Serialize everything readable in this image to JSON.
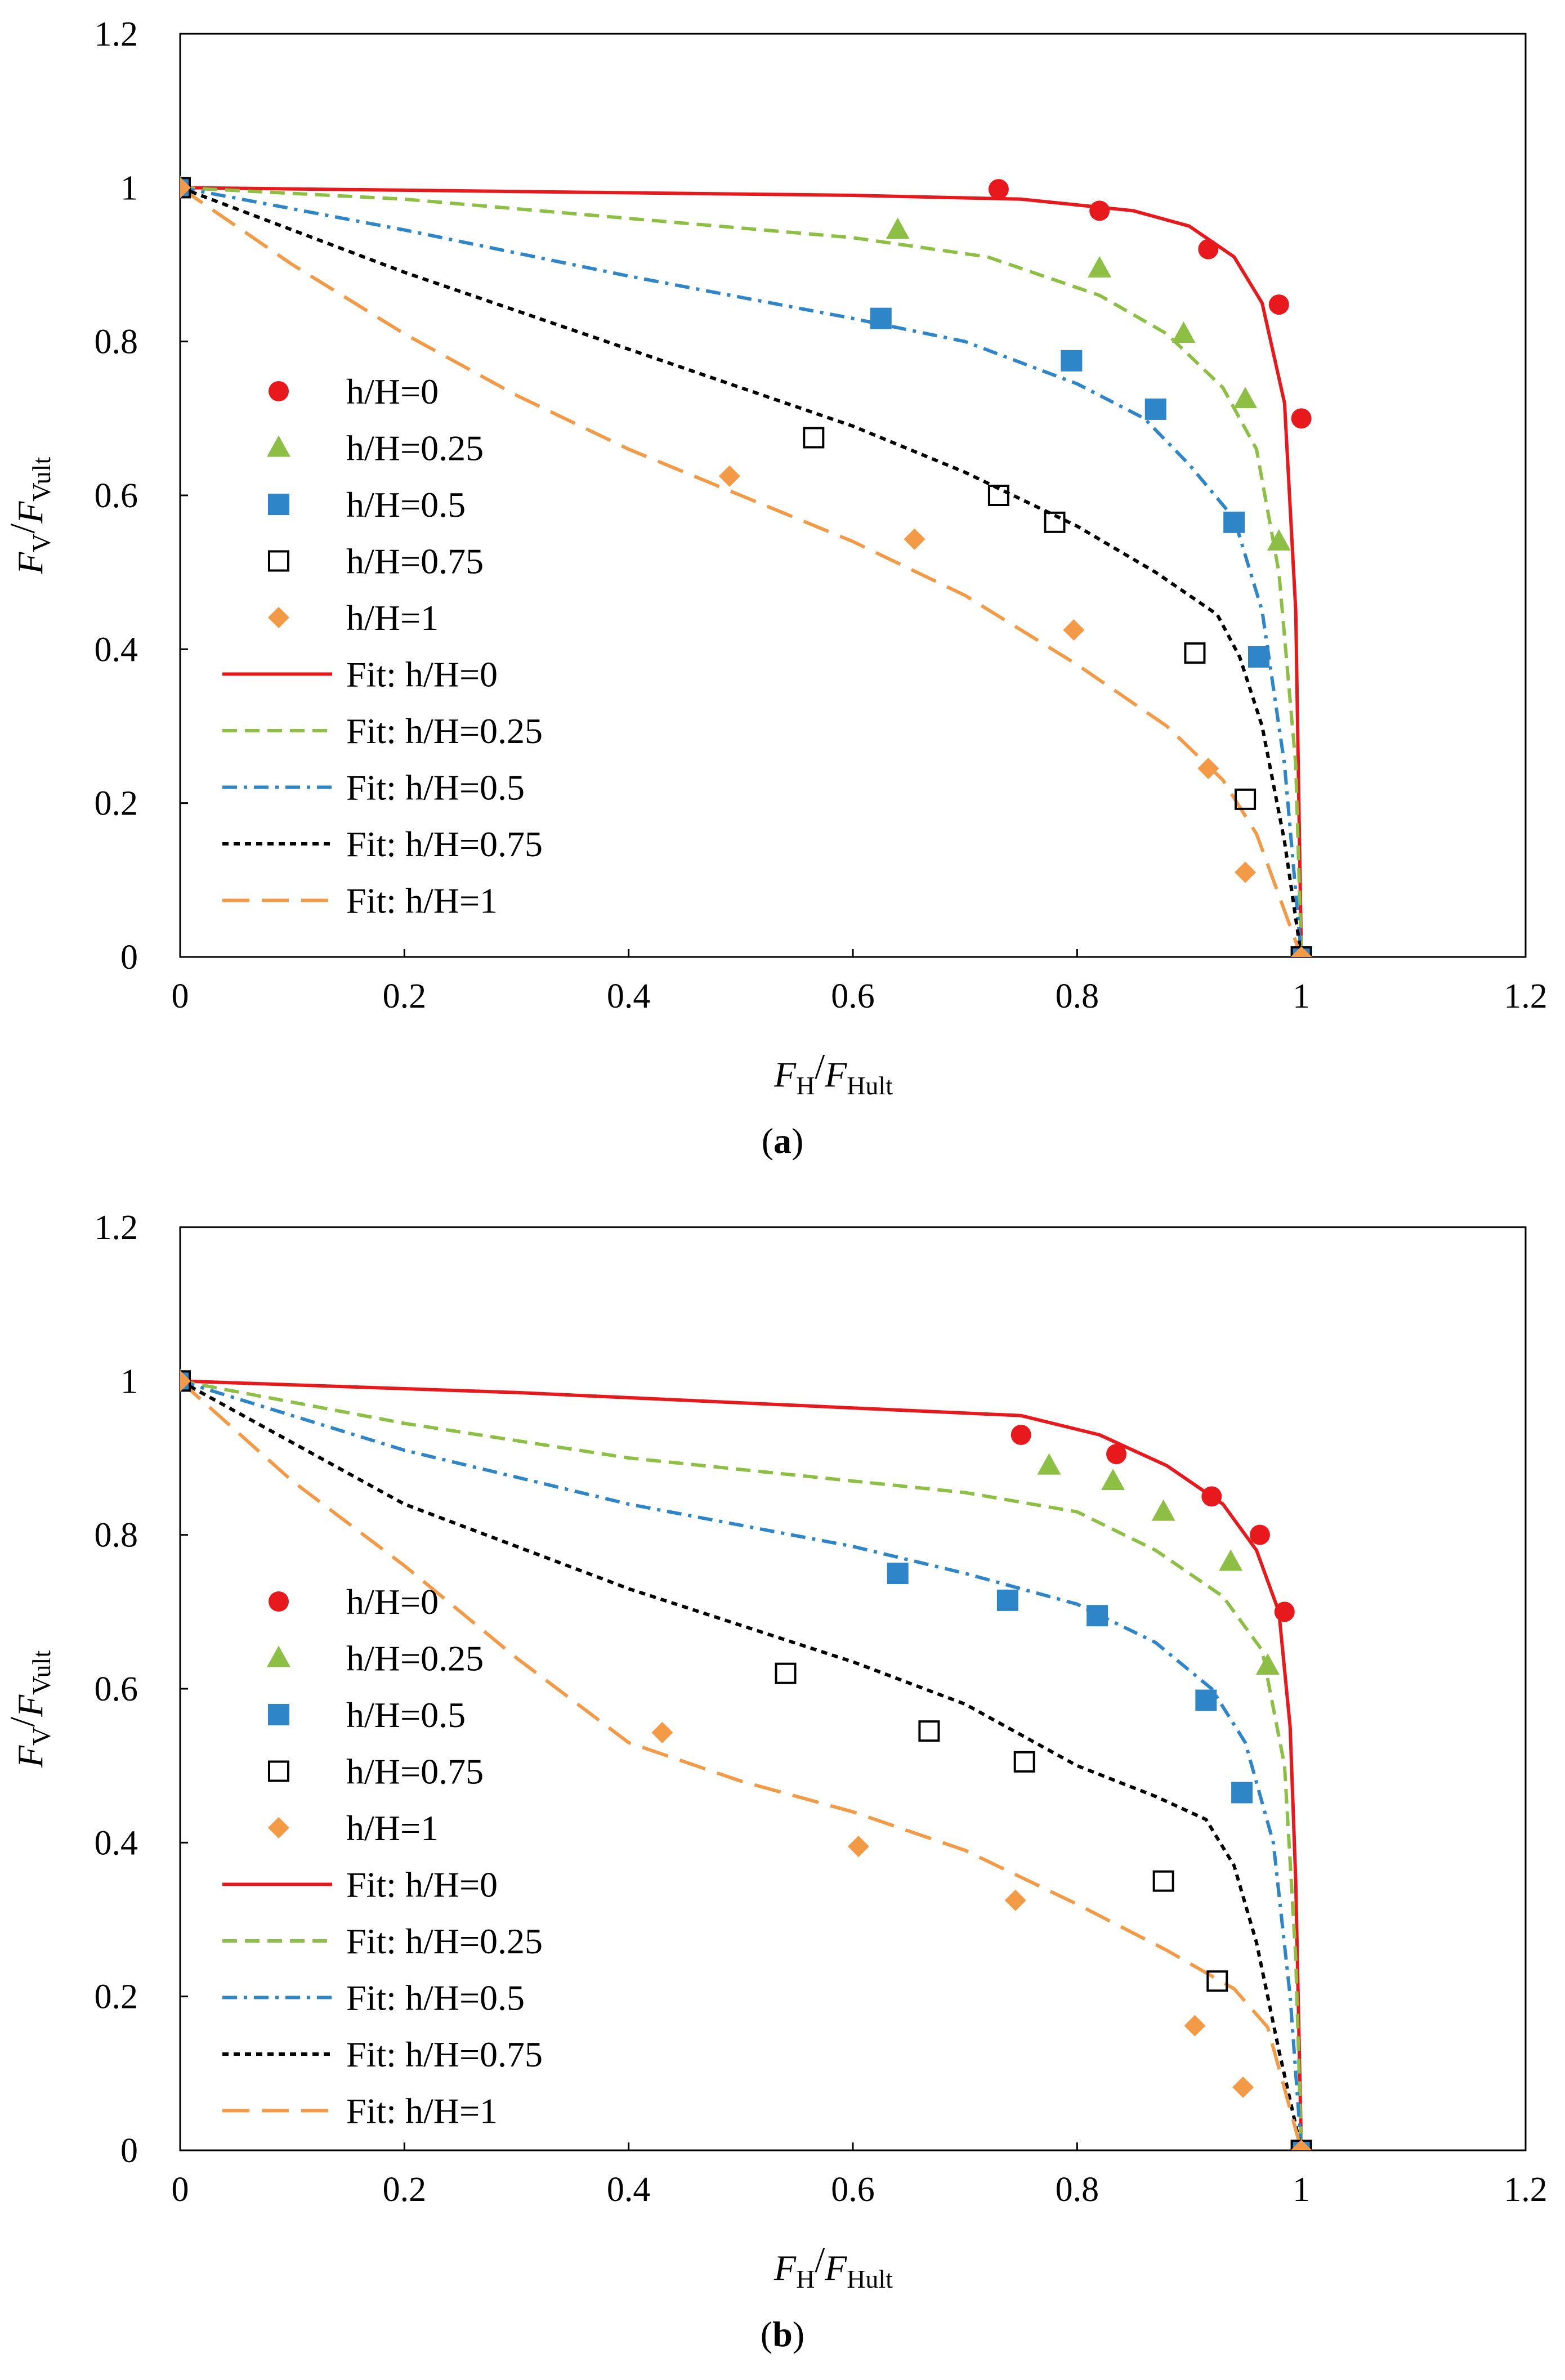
{
  "figure": {
    "panels": [
      {
        "label": "a",
        "caption_open": "(",
        "caption_close": ")"
      },
      {
        "label": "b",
        "caption_open": "(",
        "caption_close": ")"
      }
    ]
  },
  "colors": {
    "h0": "#e8191c",
    "h025": "#8dbf45",
    "h05": "#2e86c9",
    "h075": "#000000",
    "h1": "#f39a47"
  },
  "chart_data": [
    {
      "type": "scatter",
      "title": "",
      "panel": "a",
      "xlabel": {
        "main": "F",
        "sub": "H",
        "sep": "/",
        "main2": "F",
        "sub2": "Hult"
      },
      "ylabel": {
        "main": "F",
        "sub": "V",
        "sep": "/",
        "main2": "F",
        "sub2": "Vult"
      },
      "xlim": [
        0,
        1.2
      ],
      "ylim": [
        0,
        1.2
      ],
      "xticks": [
        "0",
        "0.2",
        "0.4",
        "0.6",
        "0.8",
        "1",
        "1.2"
      ],
      "yticks": [
        "0",
        "0.2",
        "0.4",
        "0.6",
        "0.8",
        "1",
        "1.2"
      ],
      "grid": false,
      "legend_position": "left-middle",
      "series": [
        {
          "name": "h/H=0",
          "kind": "marker",
          "marker": "circle",
          "color_key": "h0",
          "x": [
            0,
            0.73,
            0.82,
            0.917,
            0.98,
            1.0,
            1.0
          ],
          "y": [
            1.0,
            0.998,
            0.97,
            0.92,
            0.848,
            0.7,
            0.0
          ]
        },
        {
          "name": "h/H=0.25",
          "kind": "marker",
          "marker": "triangle",
          "color_key": "h025",
          "x": [
            0,
            0.64,
            0.82,
            0.895,
            0.95,
            0.98,
            1.0
          ],
          "y": [
            1.0,
            0.945,
            0.895,
            0.81,
            0.725,
            0.54,
            0.0
          ]
        },
        {
          "name": "h/H=0.5",
          "kind": "marker",
          "marker": "square",
          "color_key": "h05",
          "x": [
            0,
            0.625,
            0.795,
            0.87,
            0.94,
            0.962,
            1.0
          ],
          "y": [
            1.0,
            0.83,
            0.775,
            0.712,
            0.565,
            0.39,
            0.0
          ]
        },
        {
          "name": "h/H=0.75",
          "kind": "marker",
          "marker": "open-square",
          "color_key": "h075",
          "x": [
            0,
            0.565,
            0.73,
            0.78,
            0.905,
            0.95,
            1.0
          ],
          "y": [
            1.0,
            0.675,
            0.6,
            0.565,
            0.395,
            0.205,
            0.0
          ]
        },
        {
          "name": "h/H=1",
          "kind": "marker",
          "marker": "diamond",
          "color_key": "h1",
          "x": [
            0,
            0.49,
            0.655,
            0.797,
            0.917,
            0.95,
            1.0
          ],
          "y": [
            1.0,
            0.625,
            0.543,
            0.425,
            0.245,
            0.11,
            0.0
          ]
        },
        {
          "name": "Fit: h/H=0",
          "kind": "line",
          "dash": "solid",
          "color_key": "h0",
          "x": [
            0,
            0.3,
            0.6,
            0.75,
            0.85,
            0.9,
            0.94,
            0.965,
            0.985,
            0.995,
            1.0
          ],
          "y": [
            1.0,
            0.995,
            0.99,
            0.985,
            0.97,
            0.95,
            0.91,
            0.85,
            0.72,
            0.45,
            0.0
          ]
        },
        {
          "name": "Fit: h/H=0.25",
          "kind": "line",
          "dash": "dash",
          "color_key": "h025",
          "x": [
            0,
            0.2,
            0.4,
            0.6,
            0.72,
            0.82,
            0.88,
            0.93,
            0.96,
            0.98,
            0.995,
            1.0
          ],
          "y": [
            1.0,
            0.985,
            0.96,
            0.935,
            0.91,
            0.86,
            0.81,
            0.74,
            0.66,
            0.5,
            0.25,
            0.0
          ]
        },
        {
          "name": "Fit: h/H=0.5",
          "kind": "line",
          "dash": "dashdot",
          "color_key": "h05",
          "x": [
            0,
            0.2,
            0.4,
            0.6,
            0.7,
            0.8,
            0.86,
            0.9,
            0.94,
            0.965,
            0.985,
            1.0
          ],
          "y": [
            1.0,
            0.945,
            0.885,
            0.83,
            0.8,
            0.745,
            0.7,
            0.64,
            0.57,
            0.45,
            0.25,
            0.0
          ]
        },
        {
          "name": "Fit: h/H=0.75",
          "kind": "line",
          "dash": "dot",
          "color_key": "h075",
          "x": [
            0,
            0.2,
            0.4,
            0.6,
            0.7,
            0.8,
            0.87,
            0.925,
            0.945,
            0.965,
            0.985,
            1.0
          ],
          "y": [
            1.0,
            0.89,
            0.79,
            0.69,
            0.63,
            0.56,
            0.5,
            0.445,
            0.39,
            0.3,
            0.15,
            0.0
          ]
        },
        {
          "name": "Fit: h/H=1",
          "kind": "line",
          "dash": "longdash",
          "color_key": "h1",
          "x": [
            0,
            0.1,
            0.2,
            0.3,
            0.4,
            0.5,
            0.6,
            0.7,
            0.8,
            0.88,
            0.93,
            0.96,
            1.0
          ],
          "y": [
            1.0,
            0.9,
            0.81,
            0.73,
            0.66,
            0.6,
            0.54,
            0.47,
            0.38,
            0.3,
            0.23,
            0.16,
            0.0
          ]
        }
      ]
    },
    {
      "type": "scatter",
      "title": "",
      "panel": "b",
      "xlabel": {
        "main": "F",
        "sub": "H",
        "sep": "/",
        "main2": "F",
        "sub2": "Hult"
      },
      "ylabel": {
        "main": "F",
        "sub": "V",
        "sep": "/",
        "main2": "F",
        "sub2": "Vult"
      },
      "xlim": [
        0,
        1.2
      ],
      "ylim": [
        0,
        1.2
      ],
      "xticks": [
        "0",
        "0.2",
        "0.4",
        "0.6",
        "0.8",
        "1",
        "1.2"
      ],
      "yticks": [
        "0",
        "0.2",
        "0.4",
        "0.6",
        "0.8",
        "1",
        "1.2"
      ],
      "grid": false,
      "legend_position": "left-middle",
      "series": [
        {
          "name": "h/H=0",
          "kind": "marker",
          "marker": "circle",
          "color_key": "h0",
          "x": [
            0,
            0.75,
            0.835,
            0.92,
            0.963,
            0.985,
            1.0
          ],
          "y": [
            1.0,
            0.93,
            0.905,
            0.85,
            0.8,
            0.7,
            0.0
          ]
        },
        {
          "name": "h/H=0.25",
          "kind": "marker",
          "marker": "triangle",
          "color_key": "h025",
          "x": [
            0,
            0.775,
            0.832,
            0.877,
            0.937,
            0.97,
            1.0
          ],
          "y": [
            1.0,
            0.89,
            0.87,
            0.83,
            0.765,
            0.63,
            0.0
          ]
        },
        {
          "name": "h/H=0.5",
          "kind": "marker",
          "marker": "square",
          "color_key": "h05",
          "x": [
            0,
            0.64,
            0.738,
            0.818,
            0.915,
            0.947,
            1.0
          ],
          "y": [
            1.0,
            0.75,
            0.715,
            0.695,
            0.585,
            0.465,
            0.0
          ]
        },
        {
          "name": "h/H=0.75",
          "kind": "marker",
          "marker": "open-square",
          "color_key": "h075",
          "x": [
            0,
            0.54,
            0.668,
            0.753,
            0.877,
            0.925,
            1.0
          ],
          "y": [
            1.0,
            0.62,
            0.545,
            0.505,
            0.35,
            0.22,
            0.0
          ]
        },
        {
          "name": "h/H=1",
          "kind": "marker",
          "marker": "diamond",
          "color_key": "h1",
          "x": [
            0,
            0.43,
            0.605,
            0.745,
            0.905,
            0.948,
            1.0
          ],
          "y": [
            1.0,
            0.543,
            0.395,
            0.325,
            0.162,
            0.082,
            0.0
          ]
        },
        {
          "name": "Fit: h/H=0",
          "kind": "line",
          "dash": "solid",
          "color_key": "h0",
          "x": [
            0,
            0.3,
            0.6,
            0.75,
            0.82,
            0.88,
            0.93,
            0.96,
            0.98,
            0.99,
            0.995,
            1.0
          ],
          "y": [
            1.0,
            0.985,
            0.965,
            0.955,
            0.93,
            0.89,
            0.84,
            0.78,
            0.7,
            0.55,
            0.35,
            0.0
          ]
        },
        {
          "name": "Fit: h/H=0.25",
          "kind": "line",
          "dash": "dash",
          "color_key": "h025",
          "x": [
            0,
            0.2,
            0.4,
            0.6,
            0.7,
            0.8,
            0.87,
            0.93,
            0.965,
            0.985,
            0.995,
            1.0
          ],
          "y": [
            1.0,
            0.945,
            0.9,
            0.87,
            0.855,
            0.83,
            0.78,
            0.72,
            0.65,
            0.5,
            0.25,
            0.0
          ]
        },
        {
          "name": "Fit: h/H=0.5",
          "kind": "line",
          "dash": "dashdot",
          "color_key": "h05",
          "x": [
            0,
            0.2,
            0.4,
            0.6,
            0.7,
            0.8,
            0.87,
            0.92,
            0.95,
            0.975,
            0.99,
            1.0
          ],
          "y": [
            1.0,
            0.91,
            0.84,
            0.785,
            0.75,
            0.71,
            0.66,
            0.6,
            0.53,
            0.4,
            0.2,
            0.0
          ]
        },
        {
          "name": "Fit: h/H=0.75",
          "kind": "line",
          "dash": "dot",
          "color_key": "h075",
          "x": [
            0,
            0.2,
            0.4,
            0.6,
            0.7,
            0.8,
            0.87,
            0.915,
            0.94,
            0.96,
            0.98,
            1.0
          ],
          "y": [
            1.0,
            0.84,
            0.73,
            0.635,
            0.58,
            0.5,
            0.46,
            0.43,
            0.37,
            0.27,
            0.13,
            0.0
          ]
        },
        {
          "name": "Fit: h/H=1",
          "kind": "line",
          "dash": "longdash",
          "color_key": "h1",
          "x": [
            0,
            0.1,
            0.2,
            0.3,
            0.4,
            0.5,
            0.6,
            0.7,
            0.8,
            0.88,
            0.94,
            0.97,
            1.0
          ],
          "y": [
            1.0,
            0.87,
            0.76,
            0.64,
            0.53,
            0.48,
            0.44,
            0.39,
            0.32,
            0.26,
            0.21,
            0.16,
            0.0
          ]
        }
      ]
    }
  ]
}
